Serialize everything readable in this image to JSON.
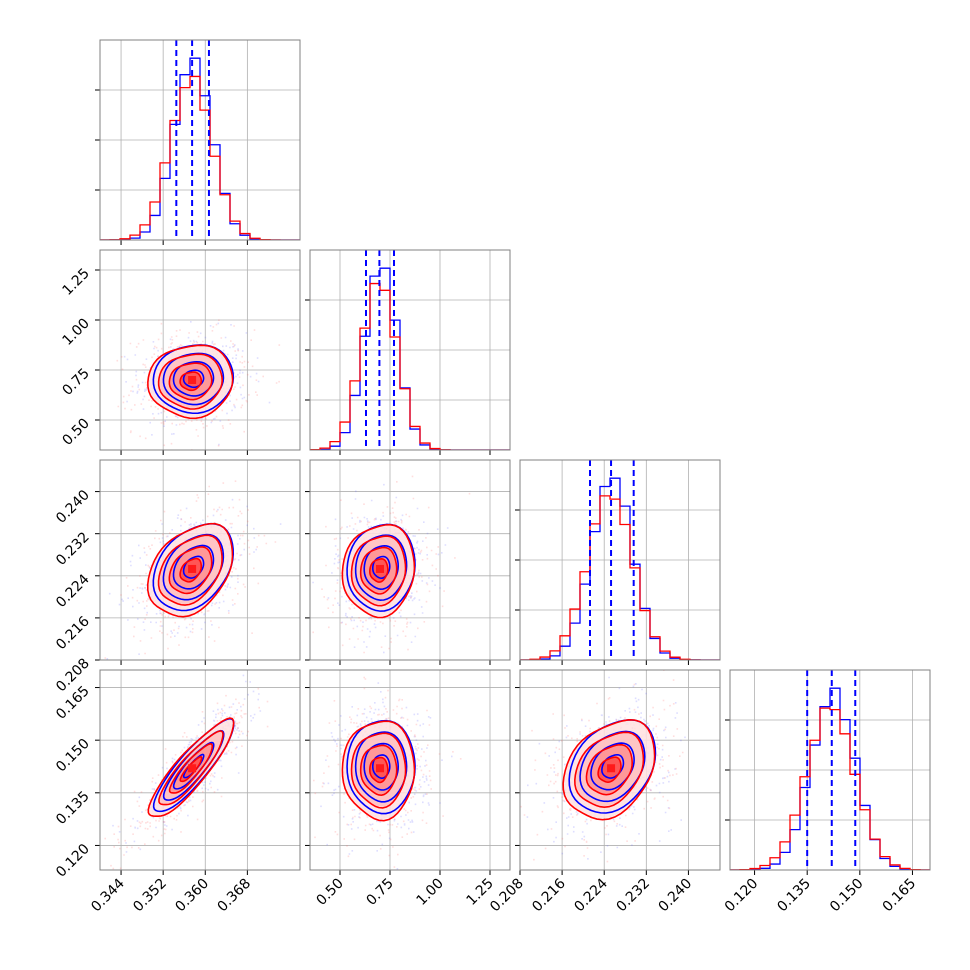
{
  "chart_data": {
    "type": "corner",
    "grid": true,
    "params": [
      {
        "range": [
          0.34,
          0.378
        ],
        "ticks": [
          0.344,
          0.352,
          0.36,
          0.368
        ],
        "tick_labels": [
          "0.344",
          "0.352",
          "0.360",
          "0.368"
        ],
        "quantiles": [
          0.3545,
          0.3575,
          0.3607
        ],
        "mean": 0.3575,
        "sd": 0.0038
      },
      {
        "range": [
          0.35,
          1.35
        ],
        "ticks": [
          0.5,
          0.75,
          1.0,
          1.25
        ],
        "tick_labels": [
          "0.50",
          "0.75",
          "1.00",
          "1.25"
        ],
        "quantiles": [
          0.63,
          0.697,
          0.77
        ],
        "mean": 0.7,
        "sd": 0.085
      },
      {
        "range": [
          0.208,
          0.246
        ],
        "ticks": [
          0.208,
          0.216,
          0.224,
          0.232,
          0.24
        ],
        "tick_labels": [
          "0.208",
          "0.216",
          "0.224",
          "0.232",
          "0.240"
        ],
        "quantiles": [
          0.2213,
          0.2253,
          0.2296
        ],
        "mean": 0.2253,
        "sd": 0.0041
      },
      {
        "range": [
          0.113,
          0.17
        ],
        "ticks": [
          0.12,
          0.135,
          0.15,
          0.165
        ],
        "tick_labels": [
          "0.120",
          "0.135",
          "0.150",
          "0.165"
        ],
        "quantiles": [
          0.135,
          0.142,
          0.1487
        ],
        "mean": 0.142,
        "sd": 0.0066
      }
    ],
    "correlations": {
      "1-0": 0.05,
      "2-0": 0.35,
      "2-1": 0.08,
      "3-0": 0.88,
      "3-1": 0.0,
      "3-2": 0.3
    },
    "histograms": {
      "bins": 20,
      "series": [
        {
          "name": "",
          "color": "#0000ff",
          "shift": 0.05,
          "width": 0.95
        },
        {
          "name": "",
          "color": "#ff0000",
          "shift": -0.05,
          "width": 1.05
        }
      ]
    },
    "contour_levels_sigma": [
      0.5,
      1.0,
      1.5,
      2.0
    ],
    "quantile_line_color": "#0000ff"
  }
}
